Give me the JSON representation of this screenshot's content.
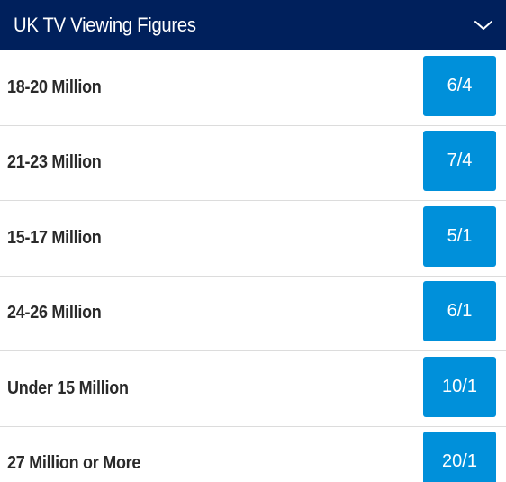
{
  "market": {
    "title": "UK TV Viewing Figures",
    "toggle_icon": "chevron-down-icon",
    "colors": {
      "header_bg": "#00205c",
      "odds_bg": "#0090da",
      "label_text": "#2a2a2a"
    },
    "selections": [
      {
        "label": "18-20 Million",
        "odds": "6/4"
      },
      {
        "label": "21-23 Million",
        "odds": "7/4"
      },
      {
        "label": "15-17 Million",
        "odds": "5/1"
      },
      {
        "label": "24-26 Million",
        "odds": "6/1"
      },
      {
        "label": "Under 15 Million",
        "odds": "10/1"
      },
      {
        "label": "27 Million or More",
        "odds": "20/1"
      }
    ]
  }
}
